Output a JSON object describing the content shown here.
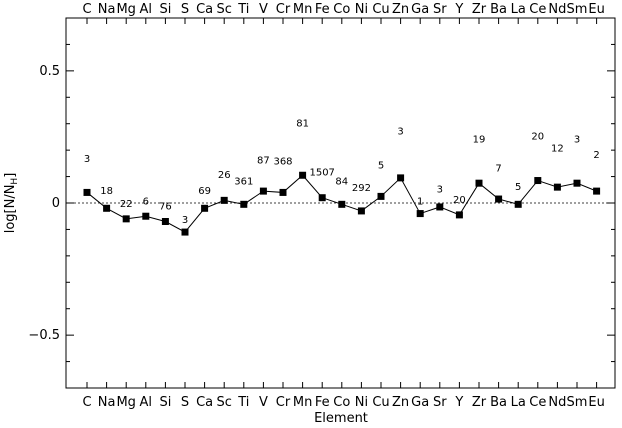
{
  "chart_data": {
    "type": "line",
    "xlabel": "Element",
    "ylabel": "log[N/N",
    "ylabel_sub": "H",
    "ylabel_close": "]",
    "ylim": [
      -0.7,
      0.7
    ],
    "y_ticks": [
      -0.5,
      0,
      0.5
    ],
    "y_tick_labels": [
      "−0.5",
      "0",
      "0.5"
    ],
    "reference_line": 0,
    "grid": false,
    "legend": "none",
    "marker_color": "#000000",
    "categories": [
      "C",
      "Na",
      "Mg",
      "Al",
      "Si",
      "S",
      "Ca",
      "Sc",
      "Ti",
      "V",
      "Cr",
      "Mn",
      "Fe",
      "Co",
      "Ni",
      "Cu",
      "Zn",
      "Ga",
      "Sr",
      "Y",
      "Zr",
      "Ba",
      "La",
      "Ce",
      "Nd",
      "Sm",
      "Eu"
    ],
    "values": [
      0.04,
      -0.02,
      -0.06,
      -0.05,
      -0.07,
      -0.11,
      -0.02,
      0.01,
      -0.005,
      0.045,
      0.04,
      0.105,
      0.02,
      -0.005,
      -0.03,
      0.025,
      0.095,
      -0.04,
      -0.015,
      -0.045,
      0.075,
      0.015,
      -0.005,
      0.085,
      0.06,
      0.075,
      0.045
    ],
    "counts": [
      "3",
      "18",
      "22",
      "6",
      "76",
      "3",
      "69",
      "26",
      "361",
      "87",
      "368",
      "81",
      "1507",
      "84",
      "292",
      "5",
      "3",
      "1",
      "3",
      "20",
      "19",
      "7",
      "5",
      "20",
      "12",
      "3",
      "2"
    ],
    "count_offsets": [
      0.13,
      0.07,
      0.06,
      0.06,
      0.06,
      0.05,
      0.07,
      0.1,
      0.09,
      0.12,
      0.12,
      0.2,
      0.1,
      0.09,
      0.09,
      0.12,
      0.18,
      0.05,
      0.07,
      0.06,
      0.17,
      0.12,
      0.07,
      0.17,
      0.15,
      0.17,
      0.14
    ]
  }
}
